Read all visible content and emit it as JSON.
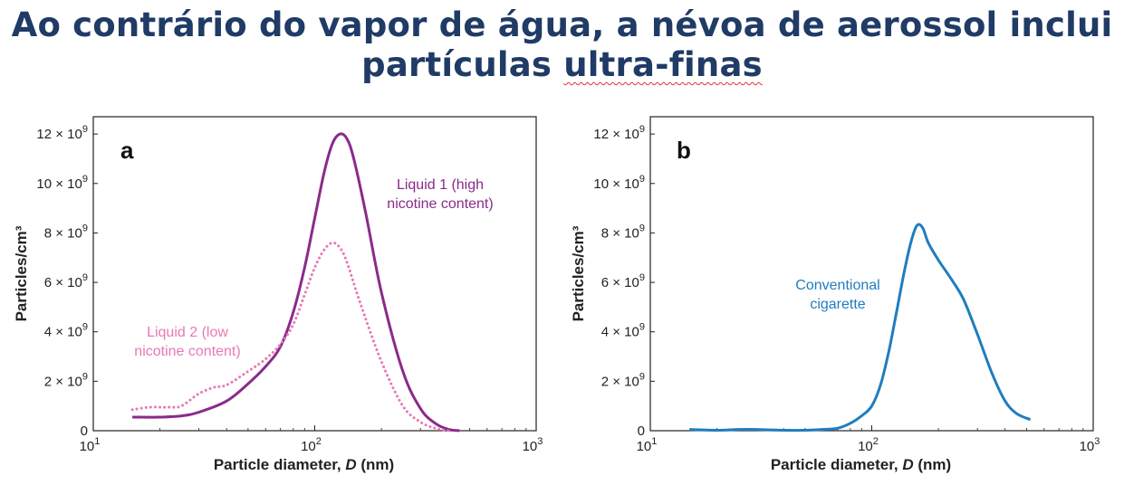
{
  "slide": {
    "title_line1": "Ao contrário do vapor de água, a névoa de aerossol inclui",
    "title_line2_plain": "partículas ",
    "title_line2_marked": "ultra-finas"
  },
  "colors": {
    "title": "#1f3b66",
    "liquid1": "#8b2a8b",
    "liquid2": "#e879b4",
    "cigarette": "#1f7dbf"
  },
  "chart_data": [
    {
      "type": "line",
      "panel_label": "a",
      "xlabel": "Particle diameter, D (nm)",
      "xlabel_main": "Particle diameter, ",
      "xlabel_var": "D",
      "xlabel_unit": " (nm)",
      "ylabel": "Particles/cm³",
      "xscale": "log",
      "xlim": [
        10,
        1000
      ],
      "ylim": [
        0,
        12700000000.0
      ],
      "x_ticks": [
        {
          "value": 10,
          "base": "10",
          "exp": "1"
        },
        {
          "value": 100,
          "base": "10",
          "exp": "2"
        },
        {
          "value": 1000,
          "base": "10",
          "exp": "3"
        }
      ],
      "y_ticks": [
        {
          "value": 0,
          "label": "0",
          "exp": ""
        },
        {
          "value": 2000000000.0,
          "label": "2 × 10",
          "exp": "9"
        },
        {
          "value": 4000000000.0,
          "label": "4 × 10",
          "exp": "9"
        },
        {
          "value": 6000000000.0,
          "label": "6 × 10",
          "exp": "9"
        },
        {
          "value": 8000000000.0,
          "label": "8 × 10",
          "exp": "9"
        },
        {
          "value": 10000000000.0,
          "label": "10 × 10",
          "exp": "9"
        },
        {
          "value": 12000000000.0,
          "label": "12 × 10",
          "exp": "9"
        }
      ],
      "series": [
        {
          "name": "Liquid 1 (high nicotine content)",
          "label_lines": [
            "Liquid 1 (high",
            "nicotine content)"
          ],
          "style": "solid",
          "color": "#8b2a8b",
          "x": [
            15,
            20,
            25,
            30,
            40,
            50,
            60,
            70,
            80,
            90,
            100,
            110,
            120,
            130,
            140,
            150,
            170,
            200,
            250,
            300,
            350,
            400,
            450
          ],
          "y": [
            550000000.0,
            550000000.0,
            600000000.0,
            750000000.0,
            1200000000.0,
            1900000000.0,
            2600000000.0,
            3400000000.0,
            4800000000.0,
            6600000000.0,
            8600000000.0,
            10400000000.0,
            11600000000.0,
            12000000000.0,
            11800000000.0,
            11000000000.0,
            8800000000.0,
            5600000000.0,
            2400000000.0,
            900000000.0,
            300000000.0,
            60000000.0,
            0.0
          ]
        },
        {
          "name": "Liquid 2 (low nicotine content)",
          "label_lines": [
            "Liquid 2 (low",
            "nicotine content)"
          ],
          "style": "dotted",
          "color": "#e879b4",
          "x": [
            15,
            18,
            22,
            25,
            30,
            35,
            40,
            50,
            60,
            70,
            80,
            90,
            100,
            110,
            120,
            130,
            140,
            160,
            200,
            250,
            300,
            350,
            400
          ],
          "y": [
            850000000.0,
            950000000.0,
            950000000.0,
            1000000000.0,
            1500000000.0,
            1750000000.0,
            1850000000.0,
            2400000000.0,
            2900000000.0,
            3500000000.0,
            4300000000.0,
            5500000000.0,
            6600000000.0,
            7300000000.0,
            7600000000.0,
            7400000000.0,
            6800000000.0,
            5200000000.0,
            2800000000.0,
            1000000000.0,
            350000000.0,
            100000000.0,
            0.0
          ]
        }
      ]
    },
    {
      "type": "line",
      "panel_label": "b",
      "xlabel": "Particle diameter, D (nm)",
      "xlabel_main": "Particle diameter, ",
      "xlabel_var": "D",
      "xlabel_unit": " (nm)",
      "ylabel": "Particles/cm³",
      "xscale": "log",
      "xlim": [
        10,
        1000
      ],
      "ylim": [
        0,
        12700000000.0
      ],
      "x_ticks": [
        {
          "value": 10,
          "base": "10",
          "exp": "1"
        },
        {
          "value": 100,
          "base": "10",
          "exp": "2"
        },
        {
          "value": 1000,
          "base": "10",
          "exp": "3"
        }
      ],
      "y_ticks": [
        {
          "value": 0,
          "label": "0",
          "exp": ""
        },
        {
          "value": 2000000000.0,
          "label": "2 × 10",
          "exp": "9"
        },
        {
          "value": 4000000000.0,
          "label": "4 × 10",
          "exp": "9"
        },
        {
          "value": 6000000000.0,
          "label": "6 × 10",
          "exp": "9"
        },
        {
          "value": 8000000000.0,
          "label": "8 × 10",
          "exp": "9"
        },
        {
          "value": 10000000000.0,
          "label": "10 × 10",
          "exp": "9"
        },
        {
          "value": 12000000000.0,
          "label": "12 × 10",
          "exp": "9"
        }
      ],
      "series": [
        {
          "name": "Conventional cigarette",
          "label_lines": [
            "Conventional",
            "cigarette"
          ],
          "style": "solid",
          "color": "#1f7dbf",
          "x": [
            15,
            20,
            25,
            30,
            40,
            50,
            60,
            70,
            80,
            90,
            100,
            110,
            120,
            130,
            140,
            150,
            160,
            170,
            180,
            200,
            230,
            260,
            300,
            350,
            400,
            450,
            520
          ],
          "y": [
            50000000.0,
            20000000.0,
            50000000.0,
            50000000.0,
            20000000.0,
            20000000.0,
            50000000.0,
            100000000.0,
            300000000.0,
            600000000.0,
            1000000000.0,
            1900000000.0,
            3300000000.0,
            4900000000.0,
            6400000000.0,
            7600000000.0,
            8300000000.0,
            8200000000.0,
            7600000000.0,
            6900000000.0,
            6100000000.0,
            5300000000.0,
            3900000000.0,
            2300000000.0,
            1200000000.0,
            700000000.0,
            450000000.0
          ]
        }
      ]
    }
  ]
}
